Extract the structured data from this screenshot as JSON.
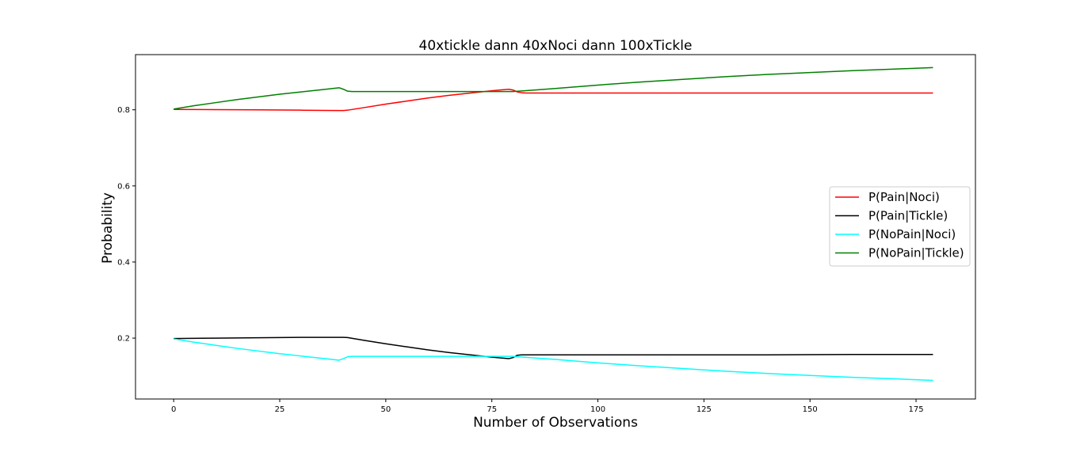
{
  "chart_data": {
    "type": "line",
    "title": "40xtickle dann 40xNoci dann 100xTickle",
    "xlabel": "Number of Observations",
    "ylabel": "Probability",
    "xlim": [
      -9,
      189
    ],
    "ylim": [
      0.04,
      0.945
    ],
    "xticks": [
      0,
      25,
      50,
      75,
      100,
      125,
      150,
      175
    ],
    "yticks": [
      0.2,
      0.4,
      0.6,
      0.8
    ],
    "grid": false,
    "legend_position": "center-right",
    "series": [
      {
        "name": "P(Pain|Noci)",
        "color": "#ff0000",
        "x": [
          0,
          10,
          20,
          30,
          39,
          40,
          41,
          45,
          50,
          55,
          60,
          65,
          70,
          75,
          79,
          80,
          81,
          82,
          83,
          90,
          100,
          120,
          140,
          160,
          179
        ],
        "y": [
          0.801,
          0.8005,
          0.8,
          0.799,
          0.798,
          0.798,
          0.799,
          0.806,
          0.815,
          0.823,
          0.831,
          0.838,
          0.844,
          0.85,
          0.854,
          0.852,
          0.847,
          0.845,
          0.844,
          0.844,
          0.844,
          0.844,
          0.844,
          0.844,
          0.844
        ]
      },
      {
        "name": "P(Pain|Tickle)",
        "color": "#000000",
        "x": [
          0,
          10,
          20,
          30,
          39,
          40,
          41,
          45,
          50,
          55,
          60,
          65,
          70,
          75,
          79,
          80,
          81,
          82,
          83,
          90,
          100,
          120,
          140,
          160,
          179
        ],
        "y": [
          0.199,
          0.2,
          0.201,
          0.202,
          0.202,
          0.202,
          0.2015,
          0.194,
          0.185,
          0.177,
          0.169,
          0.162,
          0.156,
          0.15,
          0.146,
          0.149,
          0.155,
          0.156,
          0.156,
          0.156,
          0.156,
          0.156,
          0.156,
          0.157,
          0.157
        ]
      },
      {
        "name": "P(NoPain|Noci)",
        "color": "#00ffff",
        "x": [
          0,
          5,
          10,
          15,
          20,
          25,
          30,
          35,
          39,
          40,
          41,
          42,
          45,
          50,
          60,
          70,
          75,
          79,
          80,
          85,
          90,
          100,
          110,
          120,
          130,
          140,
          150,
          160,
          170,
          179
        ],
        "y": [
          0.198,
          0.189,
          0.181,
          0.173,
          0.166,
          0.159,
          0.153,
          0.147,
          0.142,
          0.146,
          0.151,
          0.152,
          0.152,
          0.152,
          0.152,
          0.152,
          0.152,
          0.152,
          0.152,
          0.148,
          0.144,
          0.135,
          0.127,
          0.12,
          0.113,
          0.107,
          0.102,
          0.097,
          0.093,
          0.089
        ]
      },
      {
        "name": "P(NoPain|Tickle)",
        "color": "#008000",
        "x": [
          0,
          5,
          10,
          15,
          20,
          25,
          30,
          35,
          39,
          40,
          41,
          42,
          45,
          50,
          60,
          70,
          75,
          79,
          80,
          85,
          90,
          100,
          110,
          120,
          130,
          140,
          150,
          160,
          170,
          179
        ],
        "y": [
          0.802,
          0.811,
          0.819,
          0.827,
          0.834,
          0.841,
          0.847,
          0.853,
          0.858,
          0.854,
          0.849,
          0.848,
          0.848,
          0.848,
          0.848,
          0.848,
          0.848,
          0.848,
          0.848,
          0.852,
          0.856,
          0.865,
          0.873,
          0.88,
          0.887,
          0.893,
          0.898,
          0.903,
          0.907,
          0.911
        ]
      }
    ]
  }
}
